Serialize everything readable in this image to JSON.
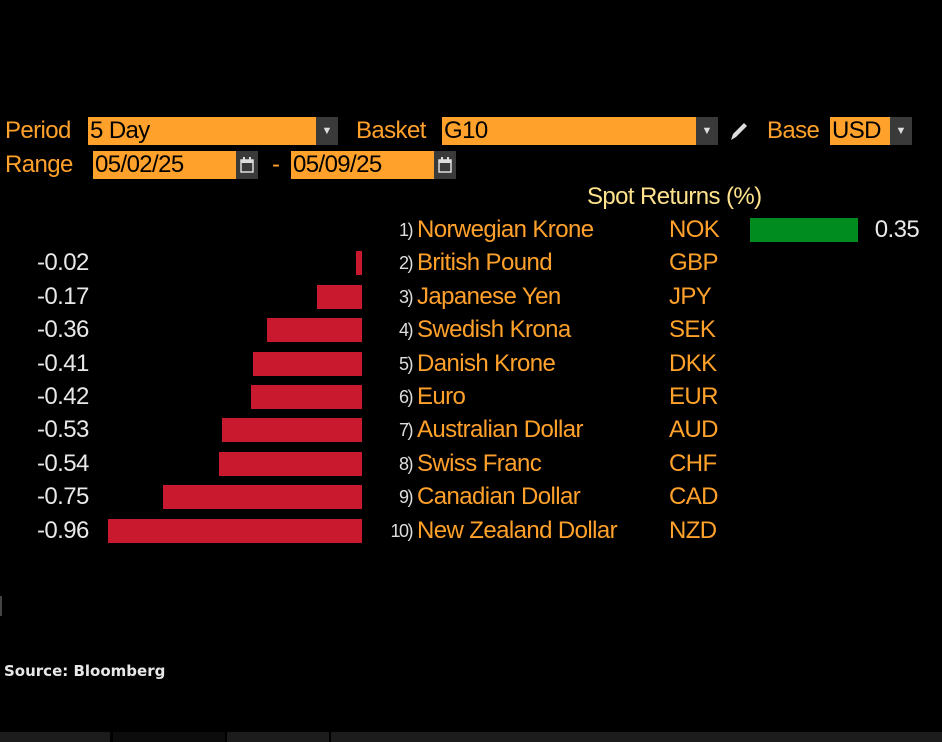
{
  "controls": {
    "period_label": "Period",
    "period_value": "5 Day",
    "basket_label": "Basket",
    "basket_value": "G10",
    "base_label": "Base",
    "base_value": "USD",
    "range_label": "Range",
    "range_start": "05/02/25",
    "range_separator": "-",
    "range_end": "05/09/25"
  },
  "chart_data": {
    "type": "bar",
    "orientation": "horizontal",
    "title": "Spot Returns (%)",
    "colors": {
      "positive": "#008c1e",
      "negative": "#c8192e"
    },
    "rows": [
      {
        "rank": "1)",
        "name": "Norwegian Krone",
        "code": "NOK",
        "value": 0.35,
        "label": "0.35"
      },
      {
        "rank": "2)",
        "name": "British Pound",
        "code": "GBP",
        "value": -0.02,
        "label": "-0.02"
      },
      {
        "rank": "3)",
        "name": "Japanese Yen",
        "code": "JPY",
        "value": -0.17,
        "label": "-0.17"
      },
      {
        "rank": "4)",
        "name": "Swedish Krona",
        "code": "SEK",
        "value": -0.36,
        "label": "-0.36"
      },
      {
        "rank": "5)",
        "name": "Danish Krone",
        "code": "DKK",
        "value": -0.41,
        "label": "-0.41"
      },
      {
        "rank": "6)",
        "name": "Euro",
        "code": "EUR",
        "value": -0.42,
        "label": "-0.42"
      },
      {
        "rank": "7)",
        "name": "Australian Dollar",
        "code": "AUD",
        "value": -0.53,
        "label": "-0.53"
      },
      {
        "rank": "8)",
        "name": "Swiss Franc",
        "code": "CHF",
        "value": -0.54,
        "label": "-0.54"
      },
      {
        "rank": "9)",
        "name": "Canadian Dollar",
        "code": "CAD",
        "value": -0.75,
        "label": "-0.75"
      },
      {
        "rank": "10)",
        "name": "New Zealand Dollar",
        "code": "NZD",
        "value": -0.96,
        "label": "-0.96"
      }
    ]
  },
  "footer": {
    "source": "Source: Bloomberg"
  }
}
